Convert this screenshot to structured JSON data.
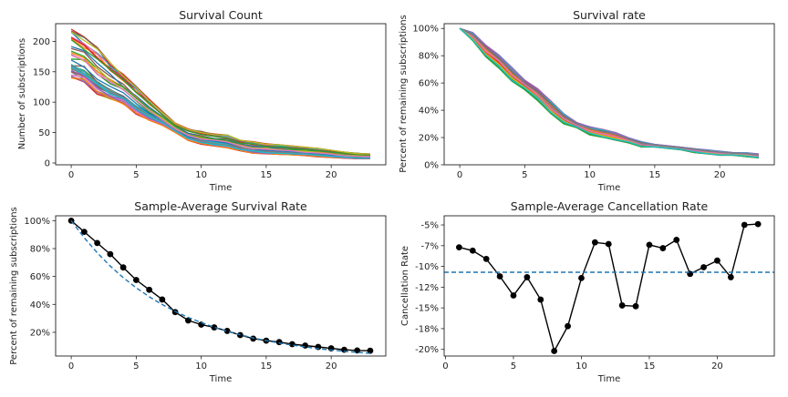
{
  "chart_data": [
    {
      "type": "line",
      "title": "Survival Count",
      "xlabel": "Time",
      "ylabel": "Number of subscriptions",
      "xlim": [
        -1.2,
        24.2
      ],
      "ylim": [
        -3,
        229
      ],
      "x_ticks": [
        0,
        5,
        10,
        15,
        20
      ],
      "y_ticks": [
        0,
        50,
        100,
        150,
        200
      ],
      "y_tick_labels": [
        "0",
        "50",
        "100",
        "150",
        "200"
      ],
      "series_count": 40,
      "band_low": [
        140,
        133,
        113,
        104,
        97,
        80,
        70,
        62,
        50,
        37,
        31,
        28,
        25,
        20,
        16,
        15,
        14,
        13,
        12,
        10,
        9,
        8,
        7,
        7
      ],
      "band_high": [
        220,
        207,
        190,
        165,
        146,
        128,
        105,
        85,
        66,
        56,
        52,
        48,
        46,
        38,
        35,
        32,
        30,
        28,
        26,
        24,
        21,
        18,
        16,
        15
      ],
      "colors": [
        "#1f77b4",
        "#ff7f0e",
        "#2ca02c",
        "#d62728",
        "#9467bd",
        "#8c564b",
        "#e377c2",
        "#7f7f7f",
        "#bcbd22",
        "#17becf"
      ]
    },
    {
      "type": "line",
      "title": "Survival rate",
      "xlabel": "Time",
      "ylabel": "Percent of remaining subscriptions",
      "xlim": [
        -1.2,
        24.2
      ],
      "ylim": [
        0,
        1.035
      ],
      "x_ticks": [
        0,
        5,
        10,
        15,
        20
      ],
      "y_ticks": [
        0,
        0.2,
        0.4,
        0.6,
        0.8,
        1.0
      ],
      "y_tick_labels": [
        "0%",
        "20%",
        "40%",
        "60%",
        "80%",
        "100%"
      ],
      "series_count": 40,
      "band_low": [
        1.0,
        0.91,
        0.79,
        0.71,
        0.61,
        0.55,
        0.47,
        0.37,
        0.3,
        0.27,
        0.22,
        0.2,
        0.18,
        0.16,
        0.13,
        0.13,
        0.12,
        0.11,
        0.09,
        0.08,
        0.07,
        0.07,
        0.06,
        0.05
      ],
      "band_high": [
        1.0,
        0.97,
        0.88,
        0.81,
        0.72,
        0.62,
        0.56,
        0.47,
        0.38,
        0.31,
        0.28,
        0.26,
        0.24,
        0.2,
        0.17,
        0.15,
        0.14,
        0.13,
        0.12,
        0.11,
        0.1,
        0.09,
        0.09,
        0.08
      ],
      "colors": [
        "#1f77b4",
        "#ff7f0e",
        "#2ca02c",
        "#d62728",
        "#9467bd",
        "#8c564b",
        "#e377c2",
        "#7f7f7f",
        "#bcbd22",
        "#17becf"
      ]
    },
    {
      "type": "line",
      "title": "Sample-Average Survival Rate",
      "xlabel": "Time",
      "ylabel": "Percent of remaining subscriptions",
      "xlim": [
        -1.2,
        24.2
      ],
      "ylim": [
        0.03,
        1.035
      ],
      "x_ticks": [
        0,
        5,
        10,
        15,
        20
      ],
      "y_ticks": [
        0.2,
        0.4,
        0.6,
        0.8,
        1.0
      ],
      "y_tick_labels": [
        "20%",
        "40%",
        "60%",
        "80%",
        "100%"
      ],
      "series": [
        {
          "x": [
            0,
            1,
            2,
            3,
            4,
            5,
            6,
            7,
            8,
            9,
            10,
            11,
            12,
            13,
            14,
            15,
            16,
            17,
            18,
            19,
            20,
            21,
            22,
            23
          ],
          "values": [
            1.0,
            0.92,
            0.84,
            0.76,
            0.665,
            0.575,
            0.505,
            0.435,
            0.345,
            0.285,
            0.255,
            0.235,
            0.21,
            0.18,
            0.155,
            0.14,
            0.13,
            0.115,
            0.105,
            0.095,
            0.085,
            0.075,
            0.07,
            0.068
          ],
          "color": "#000000",
          "marker": "circle"
        },
        {
          "x": [
            0,
            1,
            2,
            3,
            4,
            5,
            6,
            7,
            8,
            9,
            10,
            11,
            12,
            13,
            14,
            15,
            16,
            17,
            18,
            19,
            20,
            21,
            22,
            23
          ],
          "values": [
            1.0,
            0.877,
            0.77,
            0.675,
            0.592,
            0.519,
            0.455,
            0.399,
            0.35,
            0.307,
            0.27,
            0.236,
            0.207,
            0.182,
            0.16,
            0.14,
            0.123,
            0.108,
            0.095,
            0.083,
            0.073,
            0.064,
            0.056,
            0.049
          ],
          "color": "#1f77b4",
          "style": "dashed"
        }
      ]
    },
    {
      "type": "line",
      "title": "Sample-Average Cancellation Rate",
      "xlabel": "Time",
      "ylabel": "Cancellation Rate",
      "xlim": [
        -0.1,
        24.2
      ],
      "ylim": [
        -0.208,
        -0.039
      ],
      "x_ticks": [
        0,
        5,
        10,
        15,
        20
      ],
      "y_ticks": [
        -0.2,
        -0.175,
        -0.15,
        -0.125,
        -0.1,
        -0.075,
        -0.05
      ],
      "y_tick_labels": [
        "-20%",
        "-18%",
        "-15%",
        "-12%",
        "-10%",
        "-7%",
        "-5%"
      ],
      "series": [
        {
          "x": [
            1,
            2,
            3,
            4,
            5,
            6,
            7,
            8,
            9,
            10,
            11,
            12,
            13,
            14,
            15,
            16,
            17,
            18,
            19,
            20,
            21,
            22,
            23
          ],
          "values": [
            -0.077,
            -0.081,
            -0.091,
            -0.112,
            -0.135,
            -0.113,
            -0.14,
            -0.202,
            -0.172,
            -0.114,
            -0.071,
            -0.073,
            -0.147,
            -0.148,
            -0.074,
            -0.078,
            -0.068,
            -0.109,
            -0.101,
            -0.093,
            -0.113,
            -0.05,
            -0.049
          ],
          "color": "#000000",
          "marker": "circle"
        }
      ],
      "hline": {
        "value": -0.107,
        "color": "#1f77b4",
        "style": "dashed"
      }
    }
  ]
}
